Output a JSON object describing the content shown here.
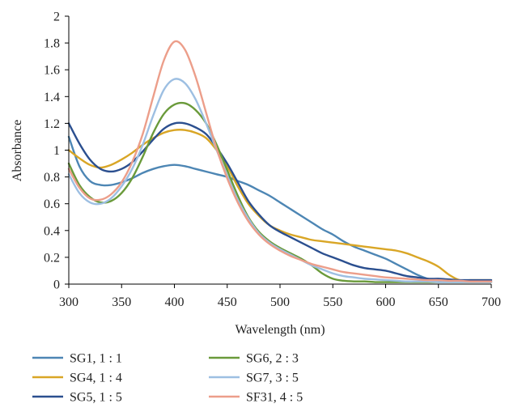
{
  "chart_data": {
    "type": "line",
    "title": "",
    "xlabel": "Wavelength (nm)",
    "ylabel": "Absorbance",
    "xlim": [
      300,
      700
    ],
    "ylim": [
      0,
      2
    ],
    "x_ticks": [
      "300",
      "350",
      "400",
      "450",
      "500",
      "550",
      "600",
      "650",
      "700"
    ],
    "y_ticks": [
      "0",
      "0.2",
      "0.4",
      "0.6",
      "0.8",
      "1",
      "1.2",
      "1.4",
      "1.6",
      "1.8",
      "2"
    ],
    "grid": false,
    "legend_position": "bottom",
    "series": [
      {
        "name": "SG1, 1 : 1",
        "color": "#4d86b4",
        "points": [
          [
            300,
            1.1
          ],
          [
            310,
            0.88
          ],
          [
            320,
            0.77
          ],
          [
            330,
            0.74
          ],
          [
            340,
            0.74
          ],
          [
            350,
            0.76
          ],
          [
            360,
            0.79
          ],
          [
            370,
            0.83
          ],
          [
            380,
            0.86
          ],
          [
            390,
            0.88
          ],
          [
            400,
            0.89
          ],
          [
            410,
            0.88
          ],
          [
            420,
            0.86
          ],
          [
            430,
            0.84
          ],
          [
            440,
            0.82
          ],
          [
            450,
            0.8
          ],
          [
            460,
            0.77
          ],
          [
            470,
            0.74
          ],
          [
            480,
            0.7
          ],
          [
            490,
            0.66
          ],
          [
            500,
            0.61
          ],
          [
            510,
            0.56
          ],
          [
            520,
            0.51
          ],
          [
            530,
            0.46
          ],
          [
            540,
            0.41
          ],
          [
            550,
            0.37
          ],
          [
            560,
            0.32
          ],
          [
            570,
            0.28
          ],
          [
            580,
            0.25
          ],
          [
            590,
            0.22
          ],
          [
            600,
            0.19
          ],
          [
            610,
            0.15
          ],
          [
            620,
            0.11
          ],
          [
            630,
            0.07
          ],
          [
            640,
            0.04
          ],
          [
            650,
            0.03
          ],
          [
            660,
            0.025
          ],
          [
            670,
            0.02
          ],
          [
            680,
            0.02
          ],
          [
            690,
            0.02
          ],
          [
            700,
            0.02
          ]
        ]
      },
      {
        "name": "SG4, 1 : 4",
        "color": "#d9a626",
        "points": [
          [
            300,
            1.0
          ],
          [
            310,
            0.94
          ],
          [
            320,
            0.89
          ],
          [
            330,
            0.87
          ],
          [
            340,
            0.89
          ],
          [
            350,
            0.93
          ],
          [
            360,
            0.98
          ],
          [
            370,
            1.04
          ],
          [
            380,
            1.09
          ],
          [
            390,
            1.13
          ],
          [
            400,
            1.15
          ],
          [
            410,
            1.15
          ],
          [
            420,
            1.13
          ],
          [
            430,
            1.09
          ],
          [
            440,
            1.0
          ],
          [
            450,
            0.88
          ],
          [
            460,
            0.73
          ],
          [
            470,
            0.6
          ],
          [
            480,
            0.51
          ],
          [
            490,
            0.44
          ],
          [
            500,
            0.4
          ],
          [
            510,
            0.37
          ],
          [
            520,
            0.35
          ],
          [
            530,
            0.33
          ],
          [
            540,
            0.32
          ],
          [
            550,
            0.31
          ],
          [
            560,
            0.3
          ],
          [
            570,
            0.29
          ],
          [
            580,
            0.28
          ],
          [
            590,
            0.27
          ],
          [
            600,
            0.26
          ],
          [
            610,
            0.25
          ],
          [
            620,
            0.23
          ],
          [
            630,
            0.2
          ],
          [
            640,
            0.17
          ],
          [
            650,
            0.13
          ],
          [
            660,
            0.07
          ],
          [
            670,
            0.03
          ],
          [
            680,
            0.03
          ],
          [
            690,
            0.03
          ],
          [
            700,
            0.03
          ]
        ]
      },
      {
        "name": "SG5, 1 : 5",
        "color": "#2b4f8f",
        "points": [
          [
            300,
            1.2
          ],
          [
            310,
            1.05
          ],
          [
            320,
            0.93
          ],
          [
            330,
            0.86
          ],
          [
            340,
            0.84
          ],
          [
            350,
            0.86
          ],
          [
            360,
            0.91
          ],
          [
            370,
            0.99
          ],
          [
            380,
            1.08
          ],
          [
            390,
            1.16
          ],
          [
            400,
            1.2
          ],
          [
            410,
            1.2
          ],
          [
            420,
            1.17
          ],
          [
            430,
            1.12
          ],
          [
            440,
            1.02
          ],
          [
            450,
            0.9
          ],
          [
            460,
            0.76
          ],
          [
            470,
            0.62
          ],
          [
            480,
            0.52
          ],
          [
            490,
            0.44
          ],
          [
            500,
            0.39
          ],
          [
            510,
            0.35
          ],
          [
            520,
            0.31
          ],
          [
            530,
            0.27
          ],
          [
            540,
            0.23
          ],
          [
            550,
            0.2
          ],
          [
            560,
            0.17
          ],
          [
            570,
            0.14
          ],
          [
            580,
            0.12
          ],
          [
            590,
            0.11
          ],
          [
            600,
            0.1
          ],
          [
            610,
            0.08
          ],
          [
            620,
            0.06
          ],
          [
            630,
            0.05
          ],
          [
            640,
            0.04
          ],
          [
            650,
            0.04
          ],
          [
            660,
            0.035
          ],
          [
            670,
            0.03
          ],
          [
            680,
            0.03
          ],
          [
            690,
            0.03
          ],
          [
            700,
            0.03
          ]
        ]
      },
      {
        "name": "SG6, 2 : 3",
        "color": "#6a9a3a",
        "points": [
          [
            300,
            0.9
          ],
          [
            310,
            0.74
          ],
          [
            320,
            0.65
          ],
          [
            330,
            0.61
          ],
          [
            340,
            0.62
          ],
          [
            350,
            0.68
          ],
          [
            360,
            0.79
          ],
          [
            370,
            0.95
          ],
          [
            380,
            1.13
          ],
          [
            390,
            1.27
          ],
          [
            400,
            1.34
          ],
          [
            410,
            1.35
          ],
          [
            420,
            1.3
          ],
          [
            430,
            1.2
          ],
          [
            440,
            1.04
          ],
          [
            450,
            0.85
          ],
          [
            460,
            0.66
          ],
          [
            470,
            0.5
          ],
          [
            480,
            0.39
          ],
          [
            490,
            0.32
          ],
          [
            500,
            0.27
          ],
          [
            510,
            0.23
          ],
          [
            520,
            0.19
          ],
          [
            530,
            0.14
          ],
          [
            540,
            0.08
          ],
          [
            550,
            0.04
          ],
          [
            560,
            0.025
          ],
          [
            570,
            0.02
          ],
          [
            580,
            0.02
          ],
          [
            590,
            0.015
          ],
          [
            600,
            0.015
          ],
          [
            610,
            0.015
          ],
          [
            620,
            0.015
          ],
          [
            630,
            0.015
          ],
          [
            640,
            0.015
          ],
          [
            650,
            0.015
          ],
          [
            660,
            0.015
          ],
          [
            670,
            0.015
          ],
          [
            680,
            0.015
          ],
          [
            690,
            0.015
          ],
          [
            700,
            0.015
          ]
        ]
      },
      {
        "name": "SG7, 3 : 5",
        "color": "#9dbfe2",
        "points": [
          [
            300,
            0.82
          ],
          [
            310,
            0.68
          ],
          [
            320,
            0.61
          ],
          [
            330,
            0.6
          ],
          [
            340,
            0.64
          ],
          [
            350,
            0.73
          ],
          [
            360,
            0.86
          ],
          [
            370,
            1.04
          ],
          [
            380,
            1.26
          ],
          [
            390,
            1.45
          ],
          [
            400,
            1.53
          ],
          [
            410,
            1.5
          ],
          [
            420,
            1.38
          ],
          [
            430,
            1.2
          ],
          [
            440,
            1.0
          ],
          [
            450,
            0.81
          ],
          [
            460,
            0.63
          ],
          [
            470,
            0.49
          ],
          [
            480,
            0.38
          ],
          [
            490,
            0.31
          ],
          [
            500,
            0.26
          ],
          [
            510,
            0.22
          ],
          [
            520,
            0.18
          ],
          [
            530,
            0.14
          ],
          [
            540,
            0.11
          ],
          [
            550,
            0.08
          ],
          [
            560,
            0.06
          ],
          [
            570,
            0.05
          ],
          [
            580,
            0.04
          ],
          [
            590,
            0.035
          ],
          [
            600,
            0.03
          ],
          [
            610,
            0.025
          ],
          [
            620,
            0.02
          ],
          [
            630,
            0.02
          ],
          [
            640,
            0.02
          ],
          [
            650,
            0.015
          ],
          [
            660,
            0.015
          ],
          [
            670,
            0.015
          ],
          [
            680,
            0.015
          ],
          [
            690,
            0.015
          ],
          [
            700,
            0.015
          ]
        ]
      },
      {
        "name": "SF31, 4 : 5",
        "color": "#ec9e8a",
        "points": [
          [
            300,
            0.86
          ],
          [
            310,
            0.72
          ],
          [
            320,
            0.64
          ],
          [
            330,
            0.63
          ],
          [
            340,
            0.67
          ],
          [
            350,
            0.76
          ],
          [
            360,
            0.91
          ],
          [
            370,
            1.12
          ],
          [
            380,
            1.4
          ],
          [
            390,
            1.67
          ],
          [
            400,
            1.81
          ],
          [
            410,
            1.75
          ],
          [
            420,
            1.55
          ],
          [
            430,
            1.28
          ],
          [
            440,
            1.01
          ],
          [
            450,
            0.79
          ],
          [
            460,
            0.61
          ],
          [
            470,
            0.47
          ],
          [
            480,
            0.37
          ],
          [
            490,
            0.3
          ],
          [
            500,
            0.25
          ],
          [
            510,
            0.21
          ],
          [
            520,
            0.18
          ],
          [
            530,
            0.15
          ],
          [
            540,
            0.13
          ],
          [
            550,
            0.11
          ],
          [
            560,
            0.09
          ],
          [
            570,
            0.08
          ],
          [
            580,
            0.07
          ],
          [
            590,
            0.06
          ],
          [
            600,
            0.05
          ],
          [
            610,
            0.045
          ],
          [
            620,
            0.04
          ],
          [
            630,
            0.035
          ],
          [
            640,
            0.03
          ],
          [
            650,
            0.03
          ],
          [
            660,
            0.025
          ],
          [
            670,
            0.025
          ],
          [
            680,
            0.02
          ],
          [
            690,
            0.02
          ],
          [
            700,
            0.02
          ]
        ]
      }
    ]
  }
}
